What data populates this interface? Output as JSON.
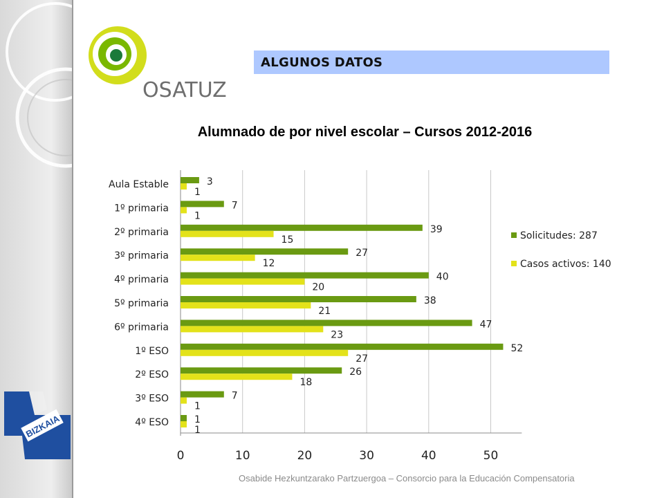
{
  "header": {
    "title": "ALGUNOS DATOS"
  },
  "logo": {
    "text": "OSATUZ"
  },
  "badge": {
    "text": "BIZKAIA"
  },
  "footer": {
    "text": "Osabide Hezkuntzarako Partzuergoa – Consorcio para la Educación Compensatoria"
  },
  "colors": {
    "solicitudes": "#6a9a12",
    "casos": "#e3e21a",
    "header_bar": "#aec8ff",
    "logo_green": "#7ab800",
    "bizkaia_blue": "#1f4fa0"
  },
  "chart_data": {
    "type": "bar",
    "orientation": "horizontal",
    "title": "Alumnado de por nivel escolar – Cursos 2012-2016",
    "categories": [
      "Aula Estable",
      "1º primaria",
      "2º primaria",
      "3º primaria",
      "4º primaria",
      "5º primaria",
      "6º primaria",
      "1º ESO",
      "2º ESO",
      "3º ESO",
      "4º ESO"
    ],
    "series": [
      {
        "name": "Solicitudes: 287",
        "values": [
          3,
          7,
          39,
          27,
          40,
          38,
          47,
          52,
          26,
          7,
          1
        ]
      },
      {
        "name": "Casos activos: 140",
        "values": [
          1,
          1,
          15,
          12,
          20,
          21,
          23,
          27,
          18,
          1,
          1
        ]
      }
    ],
    "xlim": [
      0,
      55
    ],
    "xticks": [
      0,
      10,
      20,
      30,
      40,
      50
    ],
    "grid": true,
    "legend_position": "right"
  }
}
